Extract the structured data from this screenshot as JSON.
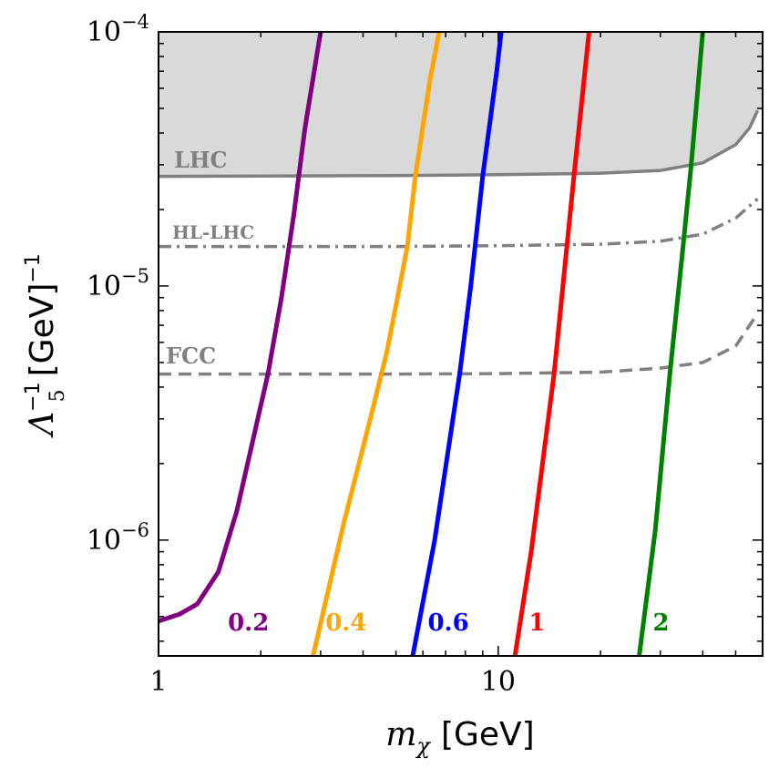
{
  "chart_data": {
    "type": "line",
    "x_scale": "log",
    "y_scale": "log",
    "xlim": [
      1,
      60
    ],
    "ylim": [
      3.5e-07,
      0.0001
    ],
    "xlabel": {
      "base": "m",
      "sub": "χ",
      "unit": "[GeV]"
    },
    "ylabel": {
      "base": "Λ",
      "sub": "5",
      "sup": "−1",
      "unit": "[GeV]",
      "unit_sup": "−1"
    },
    "x_ticks": [
      {
        "value": 1,
        "label": "1"
      },
      {
        "value": 10,
        "label": "10"
      }
    ],
    "y_ticks": [
      {
        "value": 1e-06,
        "label": "10",
        "exp": "−6"
      },
      {
        "value": 1e-05,
        "label": "10",
        "exp": "−5"
      },
      {
        "value": 0.0001,
        "label": "10",
        "exp": "−4"
      }
    ],
    "excluded_region": {
      "name": "LHC excluded",
      "color": "#d9d9d9",
      "bounded_by": "LHC"
    },
    "bounds": [
      {
        "name": "LHC",
        "label": "LHC",
        "color": "#808080",
        "style": "solid",
        "points": [
          [
            1,
            2.7e-05
          ],
          [
            5,
            2.72e-05
          ],
          [
            10,
            2.74e-05
          ],
          [
            20,
            2.78e-05
          ],
          [
            30,
            2.85e-05
          ],
          [
            40,
            3.05e-05
          ],
          [
            50,
            3.6e-05
          ],
          [
            55,
            4.2e-05
          ],
          [
            58,
            4.9e-05
          ]
        ]
      },
      {
        "name": "HL-LHC",
        "label": "HL-LHC",
        "color": "#808080",
        "style": "dashdot",
        "points": [
          [
            1,
            1.43e-05
          ],
          [
            5,
            1.43e-05
          ],
          [
            10,
            1.44e-05
          ],
          [
            20,
            1.46e-05
          ],
          [
            30,
            1.5e-05
          ],
          [
            40,
            1.6e-05
          ],
          [
            50,
            1.85e-05
          ],
          [
            58,
            2.2e-05
          ]
        ]
      },
      {
        "name": "FCC",
        "label": "FCC",
        "color": "#808080",
        "style": "dashed",
        "points": [
          [
            1,
            4.5e-06
          ],
          [
            5,
            4.5e-06
          ],
          [
            10,
            4.52e-06
          ],
          [
            20,
            4.58e-06
          ],
          [
            30,
            4.75e-06
          ],
          [
            40,
            5e-06
          ],
          [
            50,
            5.8e-06
          ],
          [
            58,
            7.8e-06
          ]
        ]
      }
    ],
    "series": [
      {
        "name": "0.2",
        "label": "0.2",
        "color": "#800080",
        "label_at": [
          1.6,
          4.9e-07
        ],
        "points": [
          [
            1,
            4.8e-07
          ],
          [
            1.15,
            5.1e-07
          ],
          [
            1.3,
            5.6e-07
          ],
          [
            1.5,
            7.5e-07
          ],
          [
            1.7,
            1.3e-06
          ],
          [
            1.9,
            2.5e-06
          ],
          [
            2.1,
            4.5e-06
          ],
          [
            2.3,
            9e-06
          ],
          [
            2.5,
            1.9e-05
          ],
          [
            2.7,
            4.2e-05
          ],
          [
            3.0,
            0.0001
          ]
        ]
      },
      {
        "name": "0.4",
        "label": "0.4",
        "color": "#ffa500",
        "label_at": [
          3.1,
          4.9e-07
        ],
        "points": [
          [
            2.85,
            3.5e-07
          ],
          [
            3.5,
            1.15e-06
          ],
          [
            4.2,
            3e-06
          ],
          [
            4.7,
            5.5e-06
          ],
          [
            5.4,
            1.43e-05
          ],
          [
            5.7,
            2.7e-05
          ],
          [
            6.3,
            6.5e-05
          ],
          [
            6.7,
            0.0001
          ]
        ]
      },
      {
        "name": "0.6",
        "label": "0.6",
        "color": "#0000ff",
        "label_at": [
          6.2,
          4.9e-07
        ],
        "points": [
          [
            5.6,
            3.5e-07
          ],
          [
            6.5,
            1e-06
          ],
          [
            7.7,
            4.5e-06
          ],
          [
            8.3,
            1e-05
          ],
          [
            9.0,
            2.7e-05
          ],
          [
            9.9,
            7e-05
          ],
          [
            10.2,
            0.0001
          ]
        ]
      },
      {
        "name": "1",
        "label": "1",
        "color": "#ff0000",
        "label_at": [
          12.3,
          4.9e-07
        ],
        "points": [
          [
            11.2,
            3.5e-07
          ],
          [
            12.5,
            9e-07
          ],
          [
            14.6,
            4.5e-06
          ],
          [
            16.7,
            2.7e-05
          ],
          [
            18.5,
            0.0001
          ]
        ]
      },
      {
        "name": "2",
        "label": "2",
        "color": "#008000",
        "label_at": [
          28.5,
          4.9e-07
        ],
        "points": [
          [
            26,
            3.5e-07
          ],
          [
            29,
            1.1e-06
          ],
          [
            32,
            4.5e-06
          ],
          [
            35,
            1.43e-05
          ],
          [
            37,
            3e-05
          ],
          [
            40,
            0.0001
          ]
        ]
      }
    ]
  }
}
